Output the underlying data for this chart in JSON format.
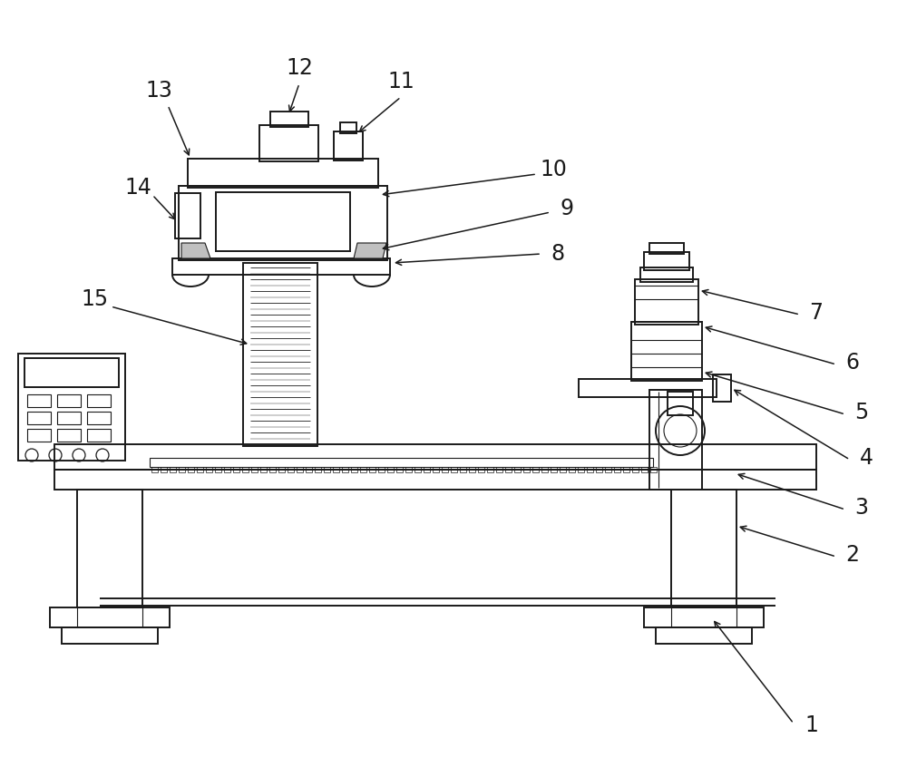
{
  "bg_color": "#ffffff",
  "line_color": "#1a1a1a",
  "lw": 1.4,
  "lw_thin": 0.8,
  "fs_label": 17
}
